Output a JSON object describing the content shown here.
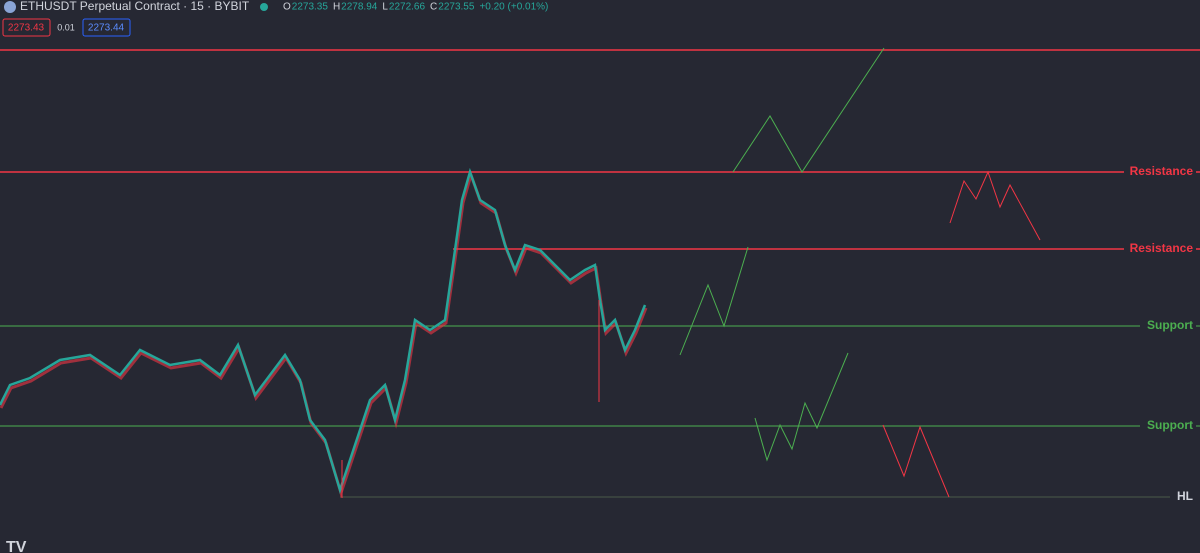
{
  "header": {
    "symbol": "ETHUSDT Perpetual Contract · 15 · BYBIT",
    "ohlc": [
      {
        "key": "O",
        "value": "2273.35"
      },
      {
        "key": "H",
        "value": "2278.94"
      },
      {
        "key": "L",
        "value": "2272.66"
      },
      {
        "key": "C",
        "value": "2273.55"
      }
    ],
    "change": "+0.20 (+0.01%)"
  },
  "trade": {
    "sell": "2273.43",
    "spread": "0.01",
    "buy": "2273.44"
  },
  "levels": [
    {
      "label": "Resistance"
    },
    {
      "label": "Resistance"
    },
    {
      "label": "Support"
    },
    {
      "label": "Support"
    },
    {
      "label": "HL"
    }
  ]
}
